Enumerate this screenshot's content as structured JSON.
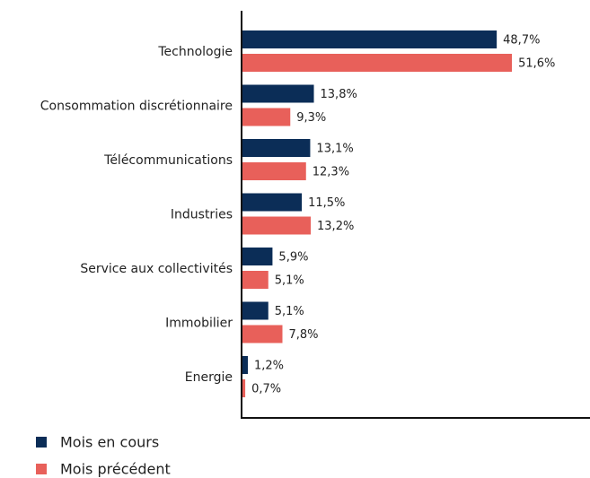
{
  "chart_data": {
    "type": "bar",
    "orientation": "horizontal",
    "categories": [
      "Technologie",
      "Consommation discrétionnaire",
      "Télécommunications",
      "Industries",
      "Service aux collectivités",
      "Immobilier",
      "Energie"
    ],
    "series": [
      {
        "name": "Mois en cours",
        "color": "#0b2d57",
        "values": [
          48.7,
          13.8,
          13.1,
          11.5,
          5.9,
          5.1,
          1.2
        ],
        "value_labels": [
          "48,7%",
          "13,8%",
          "13,1%",
          "11,5%",
          "5,9%",
          "5,1%",
          "1,2%"
        ]
      },
      {
        "name": "Mois précédent",
        "color": "#e8605a",
        "values": [
          51.6,
          9.3,
          12.3,
          13.2,
          5.1,
          7.8,
          0.7
        ],
        "value_labels": [
          "51,6%",
          "9,3%",
          "12,3%",
          "13,2%",
          "5,1%",
          "7,8%",
          "0,7%"
        ]
      }
    ],
    "xlim": [
      0,
      66.5
    ],
    "legend": "bottom-left"
  }
}
